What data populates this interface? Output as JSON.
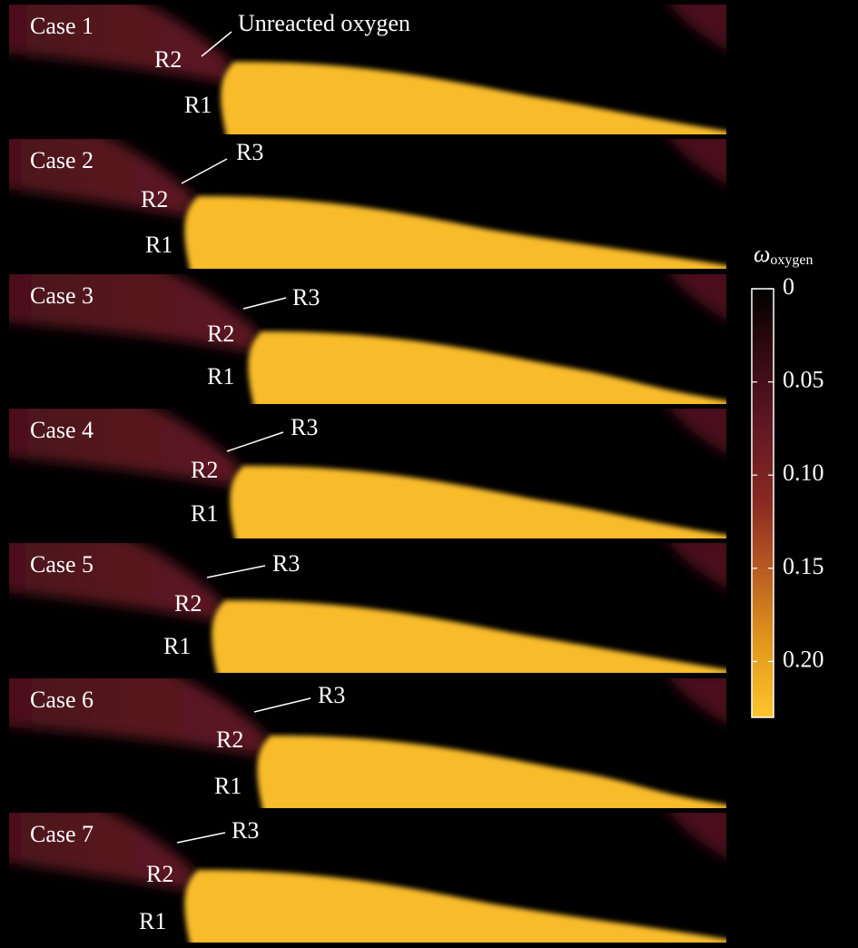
{
  "panels": [
    {
      "label": "Case 1",
      "annotations": [
        "Unreacted oxygen",
        "R2",
        "R1"
      ]
    },
    {
      "label": "Case 2",
      "annotations": [
        "R3",
        "R2",
        "R1"
      ]
    },
    {
      "label": "Case 3",
      "annotations": [
        "R3",
        "R2",
        "R1"
      ]
    },
    {
      "label": "Case 4",
      "annotations": [
        "R3",
        "R2",
        "R1"
      ]
    },
    {
      "label": "Case 5",
      "annotations": [
        "R3",
        "R2",
        "R1"
      ]
    },
    {
      "label": "Case 6",
      "annotations": [
        "R3",
        "R2",
        "R1"
      ]
    },
    {
      "label": "Case 7",
      "annotations": [
        "R3",
        "R2",
        "R1"
      ]
    }
  ],
  "colorbar": {
    "symbol": "ω",
    "subscript": "oxygen",
    "lim": [
      0,
      0.23
    ],
    "ticks": [
      0,
      0.05,
      {
        "value": 0.1,
        "label": "0.10"
      },
      0.15,
      {
        "value": 0.2,
        "label": "0.20"
      }
    ]
  }
}
